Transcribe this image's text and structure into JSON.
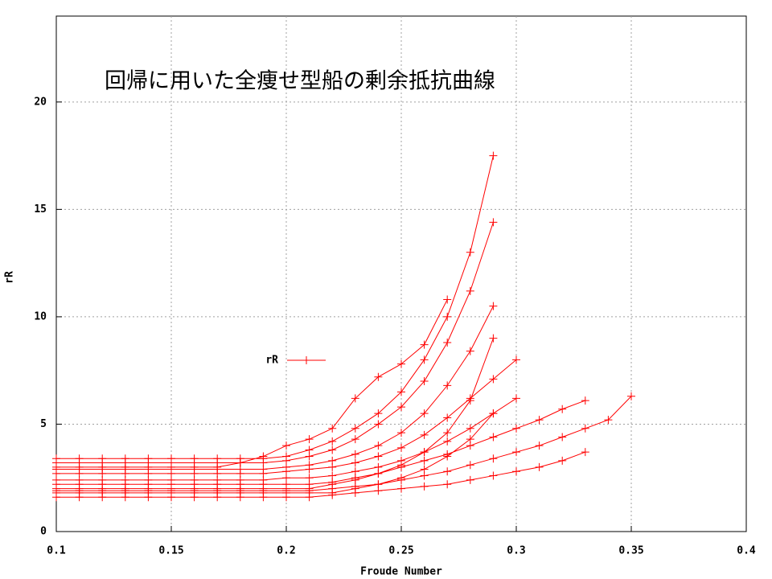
{
  "chart_data": {
    "type": "line",
    "annotation": "回帰に用いた全痩せ型船の剰余抵抗曲線",
    "x_label": "Froude Number",
    "y_label": "rR",
    "xlim": [
      0.1,
      0.4
    ],
    "xticks": [
      0.1,
      0.15,
      0.2,
      0.25,
      0.3,
      0.35,
      0.4
    ],
    "ylim": [
      0,
      24
    ],
    "yticks": [
      0,
      5,
      10,
      15,
      20
    ],
    "grid": true,
    "series": [
      {
        "name": "rR",
        "color": "#ff0000",
        "x": [
          0.1,
          0.11,
          0.12,
          0.13,
          0.14,
          0.15,
          0.16,
          0.17,
          0.18,
          0.19,
          0.2,
          0.21,
          0.22,
          0.23,
          0.24,
          0.25,
          0.26,
          0.27,
          0.28,
          0.29,
          null,
          0.1,
          0.11,
          0.12,
          0.13,
          0.14,
          0.15,
          0.16,
          0.17,
          0.18,
          0.19,
          0.2,
          0.21,
          0.22,
          0.23,
          0.24,
          0.25,
          0.26,
          0.27,
          0.28,
          0.29,
          null,
          0.1,
          0.11,
          0.12,
          0.13,
          0.14,
          0.15,
          0.16,
          0.17,
          0.18,
          0.19,
          0.2,
          0.21,
          0.22,
          0.23,
          0.24,
          0.25,
          0.26,
          0.27,
          null,
          0.1,
          0.11,
          0.12,
          0.13,
          0.14,
          0.15,
          0.16,
          0.17,
          0.18,
          0.19,
          0.2,
          0.21,
          0.22,
          0.23,
          0.24,
          0.25,
          0.26,
          0.27,
          0.28,
          0.29,
          null,
          0.1,
          0.11,
          0.12,
          0.13,
          0.14,
          0.15,
          0.16,
          0.17,
          0.18,
          0.19,
          0.2,
          0.21,
          0.22,
          0.23,
          0.24,
          0.25,
          0.26,
          0.27,
          0.28,
          0.29,
          0.3,
          null,
          0.1,
          0.11,
          0.12,
          0.13,
          0.14,
          0.15,
          0.16,
          0.17,
          0.18,
          0.19,
          0.2,
          0.21,
          0.22,
          0.23,
          0.24,
          0.25,
          0.26,
          0.27,
          0.28,
          0.29,
          0.3,
          null,
          0.1,
          0.11,
          0.12,
          0.13,
          0.14,
          0.15,
          0.16,
          0.17,
          0.18,
          0.19,
          0.2,
          0.21,
          0.22,
          0.23,
          0.24,
          0.25,
          0.26,
          0.27,
          0.28,
          0.29,
          0.3,
          0.31,
          0.32,
          0.33,
          null,
          0.1,
          0.11,
          0.12,
          0.13,
          0.14,
          0.15,
          0.16,
          0.17,
          0.18,
          0.19,
          0.2,
          0.21,
          0.22,
          0.23,
          0.24,
          0.25,
          0.26,
          0.27,
          0.28,
          0.29,
          0.3,
          0.31,
          0.32,
          0.33,
          null,
          0.1,
          0.11,
          0.12,
          0.13,
          0.14,
          0.15,
          0.16,
          0.17,
          0.18,
          0.19,
          0.2,
          0.21,
          0.22,
          0.23,
          0.24,
          0.25,
          0.26,
          0.27,
          0.28,
          0.29,
          0.3,
          0.31,
          0.32,
          0.33,
          0.34,
          0.35,
          null,
          0.1,
          0.11,
          0.12,
          0.13,
          0.14,
          0.15,
          0.16,
          0.17,
          0.18,
          0.19,
          0.2,
          0.21,
          0.22,
          0.23,
          0.24,
          0.25,
          0.26,
          0.27,
          0.28,
          0.29,
          null,
          0.1,
          0.11,
          0.12,
          0.13,
          0.14,
          0.15,
          0.16,
          0.17,
          0.18,
          0.19,
          0.2,
          0.21,
          0.22,
          0.23,
          0.24,
          0.25,
          0.26,
          0.27,
          0.28,
          0.29
        ],
        "values": [
          3.4,
          3.4,
          3.4,
          3.4,
          3.4,
          3.4,
          3.4,
          3.4,
          3.4,
          3.4,
          3.5,
          3.8,
          4.2,
          4.8,
          5.5,
          6.5,
          8.0,
          10.0,
          13.0,
          17.5,
          null,
          3.2,
          3.2,
          3.2,
          3.2,
          3.2,
          3.2,
          3.2,
          3.2,
          3.2,
          3.2,
          3.3,
          3.5,
          3.8,
          4.3,
          5.0,
          5.8,
          7.0,
          8.8,
          11.2,
          14.4,
          null,
          3.0,
          3.0,
          3.0,
          3.0,
          3.0,
          3.0,
          3.0,
          3.0,
          3.2,
          3.5,
          4.0,
          4.3,
          4.8,
          6.2,
          7.2,
          7.8,
          8.7,
          10.8,
          null,
          2.9,
          2.9,
          2.9,
          2.9,
          2.9,
          2.9,
          2.9,
          2.9,
          2.9,
          2.9,
          3.0,
          3.1,
          3.3,
          3.6,
          4.0,
          4.6,
          5.5,
          6.8,
          8.4,
          10.5,
          null,
          2.7,
          2.7,
          2.7,
          2.7,
          2.7,
          2.7,
          2.7,
          2.7,
          2.7,
          2.7,
          2.8,
          2.9,
          3.0,
          3.2,
          3.5,
          3.9,
          4.5,
          5.3,
          6.2,
          7.1,
          8.0,
          null,
          2.4,
          2.4,
          2.4,
          2.4,
          2.4,
          2.4,
          2.4,
          2.4,
          2.4,
          2.4,
          2.5,
          2.5,
          2.6,
          2.8,
          3.0,
          3.3,
          3.7,
          4.2,
          4.8,
          5.5,
          6.2,
          null,
          2.2,
          2.2,
          2.2,
          2.2,
          2.2,
          2.2,
          2.2,
          2.2,
          2.2,
          2.2,
          2.2,
          2.2,
          2.3,
          2.5,
          2.7,
          3.0,
          3.3,
          3.6,
          4.0,
          4.4,
          4.8,
          5.2,
          5.7,
          6.1,
          null,
          1.6,
          1.6,
          1.6,
          1.6,
          1.6,
          1.6,
          1.6,
          1.6,
          1.6,
          1.6,
          1.6,
          1.6,
          1.7,
          1.8,
          1.9,
          2.0,
          2.1,
          2.2,
          2.4,
          2.6,
          2.8,
          3.0,
          3.3,
          3.7,
          null,
          1.9,
          1.9,
          1.9,
          1.9,
          1.9,
          1.9,
          1.9,
          1.9,
          1.9,
          1.9,
          1.9,
          1.9,
          2.0,
          2.1,
          2.2,
          2.4,
          2.6,
          2.8,
          3.1,
          3.4,
          3.7,
          4.0,
          4.4,
          4.8,
          5.2,
          6.3,
          null,
          2.0,
          2.0,
          2.0,
          2.0,
          2.0,
          2.0,
          2.0,
          2.0,
          2.0,
          2.0,
          2.0,
          2.0,
          2.2,
          2.4,
          2.7,
          3.1,
          3.7,
          4.6,
          6.1,
          9.0,
          null,
          1.8,
          1.8,
          1.8,
          1.8,
          1.8,
          1.8,
          1.8,
          1.8,
          1.8,
          1.8,
          1.8,
          1.8,
          1.8,
          2.0,
          2.2,
          2.5,
          2.9,
          3.5,
          4.3,
          5.5
        ]
      }
    ]
  }
}
